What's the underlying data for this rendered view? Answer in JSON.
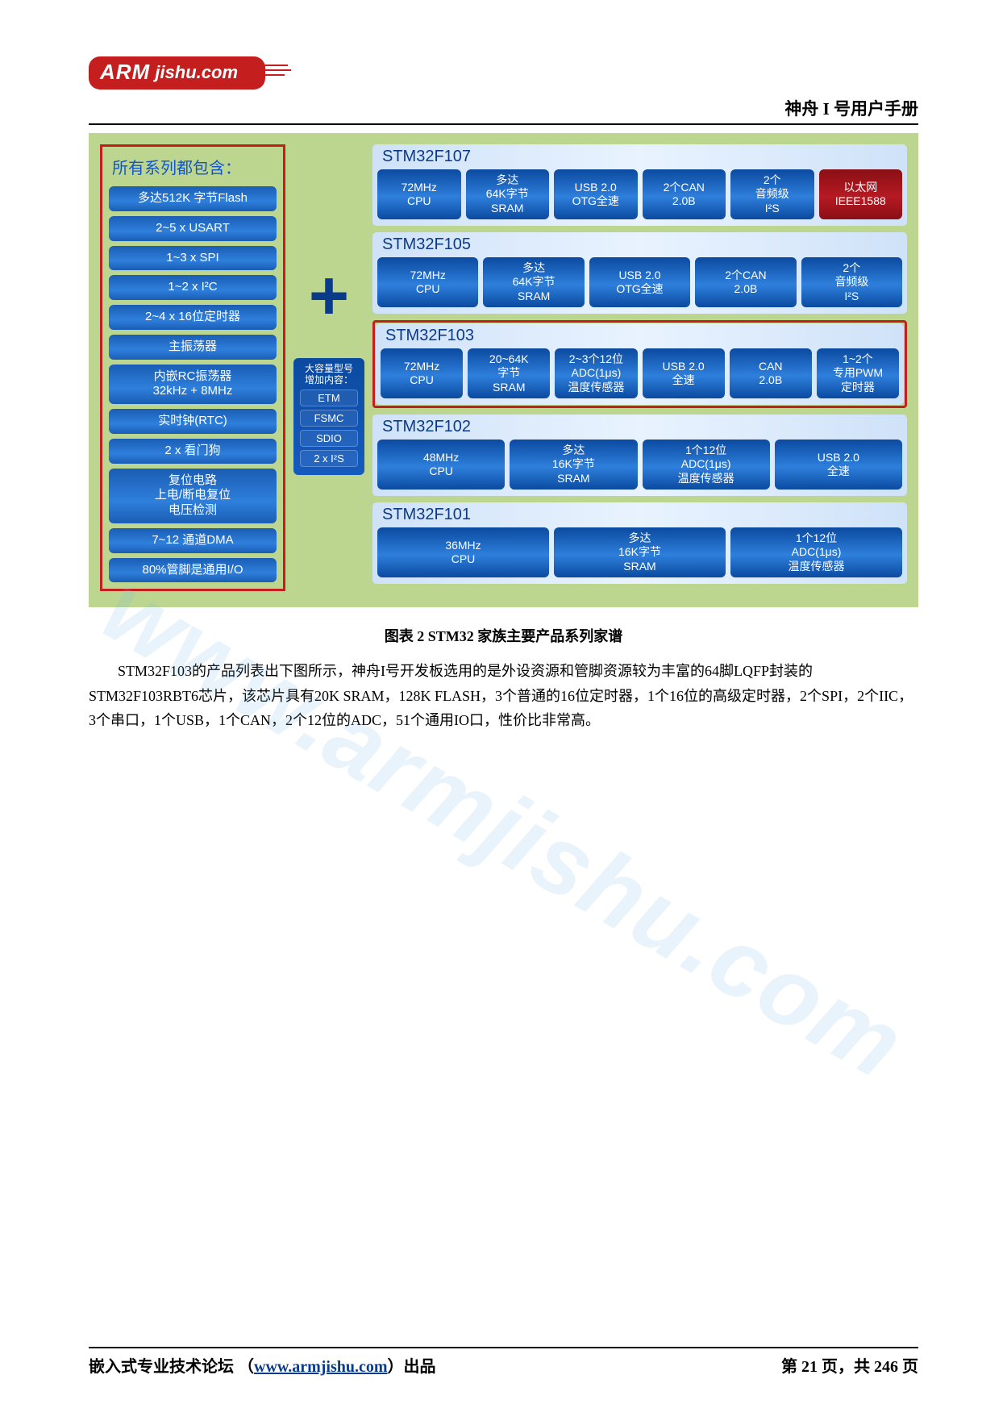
{
  "logo": {
    "arm": "ARM",
    "domain": "jishu.com"
  },
  "doc_title": "神舟 I 号用户手册",
  "colors": {
    "page_bg": "#ffffff",
    "diagram_bg": "#bdd68f",
    "family_bg_from": "#cfe2f8",
    "family_bg_to": "#e9f3ff",
    "pill_blue_top": "#0b4aa0",
    "pill_blue_mid": "#2e7fdc",
    "pill_red_top": "#8a0f16",
    "pill_red_mid": "#b61a22",
    "accent_red": "#c41e1e",
    "title_blue": "#0a3a8a",
    "link_blue": "#0a3a8a"
  },
  "diagram": {
    "left_title": "所有系列都包含：",
    "left_items": [
      "多达512K 字节Flash",
      "2~5 x USART",
      "1~3 x SPI",
      "1~2 x I²C",
      "2~4 x 16位定时器",
      "主振荡器",
      "内嵌RC振荡器\n32kHz + 8MHz",
      "实时钟(RTC)",
      "2 x 看门狗",
      "复位电路\n上电/断电复位\n电压检测",
      "7~12 通道DMA",
      "80%管脚是通用I/O"
    ],
    "plus_label": "+",
    "extra_title": "大容量型号\n增加内容：",
    "extra_items": [
      "ETM",
      "FSMC",
      "SDIO",
      "2 x I²S"
    ],
    "families": [
      {
        "name": "STM32F107",
        "highlight": false,
        "features": [
          {
            "lines": [
              "72MHz",
              "CPU"
            ],
            "style": "blue"
          },
          {
            "lines": [
              "多达",
              "64K字节",
              "SRAM"
            ],
            "style": "blue"
          },
          {
            "lines": [
              "USB 2.0",
              "OTG全速"
            ],
            "style": "blue"
          },
          {
            "lines": [
              "2个CAN",
              "2.0B"
            ],
            "style": "blue"
          },
          {
            "lines": [
              "2个",
              "音频级",
              "I²S"
            ],
            "style": "blue"
          },
          {
            "lines": [
              "以太网",
              "IEEE1588"
            ],
            "style": "red"
          }
        ]
      },
      {
        "name": "STM32F105",
        "highlight": false,
        "features": [
          {
            "lines": [
              "72MHz",
              "CPU"
            ],
            "style": "blue"
          },
          {
            "lines": [
              "多达",
              "64K字节",
              "SRAM"
            ],
            "style": "blue"
          },
          {
            "lines": [
              "USB 2.0",
              "OTG全速"
            ],
            "style": "blue"
          },
          {
            "lines": [
              "2个CAN",
              "2.0B"
            ],
            "style": "blue"
          },
          {
            "lines": [
              "2个",
              "音频级",
              "I²S"
            ],
            "style": "blue"
          }
        ]
      },
      {
        "name": "STM32F103",
        "highlight": true,
        "features": [
          {
            "lines": [
              "72MHz",
              "CPU"
            ],
            "style": "blue"
          },
          {
            "lines": [
              "20~64K",
              "字节",
              "SRAM"
            ],
            "style": "blue"
          },
          {
            "lines": [
              "2~3个12位",
              "ADC(1μs)",
              "温度传感器"
            ],
            "style": "blue"
          },
          {
            "lines": [
              "USB 2.0",
              "全速"
            ],
            "style": "blue"
          },
          {
            "lines": [
              "CAN",
              "2.0B"
            ],
            "style": "blue"
          },
          {
            "lines": [
              "1~2个",
              "专用PWM",
              "定时器"
            ],
            "style": "blue"
          }
        ]
      },
      {
        "name": "STM32F102",
        "highlight": false,
        "features": [
          {
            "lines": [
              "48MHz",
              "CPU"
            ],
            "style": "blue"
          },
          {
            "lines": [
              "多达",
              "16K字节",
              "SRAM"
            ],
            "style": "blue"
          },
          {
            "lines": [
              "1个12位",
              "ADC(1μs)",
              "温度传感器"
            ],
            "style": "blue"
          },
          {
            "lines": [
              "USB 2.0",
              "全速"
            ],
            "style": "blue"
          }
        ]
      },
      {
        "name": "STM32F101",
        "highlight": false,
        "features": [
          {
            "lines": [
              "36MHz",
              "CPU"
            ],
            "style": "blue"
          },
          {
            "lines": [
              "多达",
              "16K字节",
              "SRAM"
            ],
            "style": "blue"
          },
          {
            "lines": [
              "1个12位",
              "ADC(1μs)",
              "温度传感器"
            ],
            "style": "blue"
          }
        ]
      }
    ]
  },
  "caption": "图表 2 STM32 家族主要产品系列家谱",
  "paragraph": "STM32F103的产品列表出下图所示，神舟I号开发板选用的是外设资源和管脚资源较为丰富的64脚LQFP封装的STM32F103RBT6芯片，该芯片具有20K SRAM，128K FLASH，3个普通的16位定时器，1个16位的高级定时器，2个SPI，2个IIC，3个串口，1个USB，1个CAN，2个12位的ADC，51个通用IO口，性价比非常高。",
  "watermark": "www.armjishu.com",
  "footer": {
    "left_prefix": "嵌入式专业技术论坛 （",
    "link_text": "www.armjishu.com",
    "left_suffix": "）出品",
    "right": "第 21 页，共 246 页"
  }
}
